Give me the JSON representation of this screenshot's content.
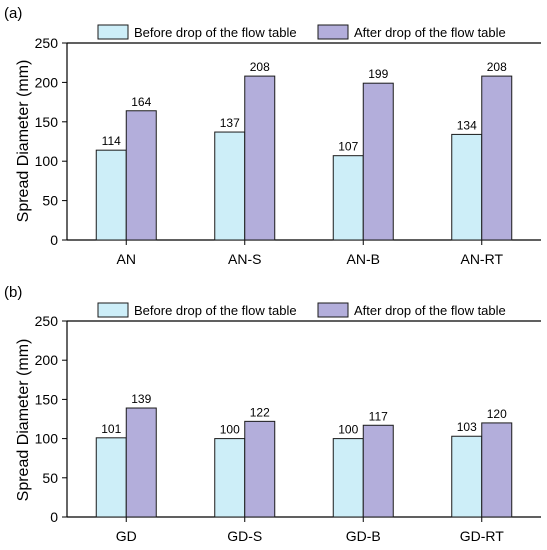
{
  "chart_data": [
    {
      "panel_label": "(a)",
      "type": "bar",
      "categories": [
        "AN",
        "AN-S",
        "AN-B",
        "AN-RT"
      ],
      "series": [
        {
          "name": "Before drop of the flow table",
          "values": [
            114,
            137,
            107,
            134
          ],
          "color": "#cdeef8"
        },
        {
          "name": "After drop of the flow table",
          "values": [
            164,
            208,
            199,
            208
          ],
          "color": "#b3aedb"
        }
      ],
      "ylabel": "Spread Diameter (mm)",
      "xlabel": "",
      "ylim": [
        0,
        250
      ],
      "yticks": [
        0,
        50,
        100,
        150,
        200,
        250
      ],
      "legend": "top",
      "grid": false
    },
    {
      "panel_label": "(b)",
      "type": "bar",
      "categories": [
        "GD",
        "GD-S",
        "GD-B",
        "GD-RT"
      ],
      "series": [
        {
          "name": "Before drop of the flow table",
          "values": [
            101,
            100,
            100,
            103
          ],
          "color": "#cdeef8"
        },
        {
          "name": "After drop of the flow table",
          "values": [
            139,
            122,
            117,
            120
          ],
          "color": "#b3aedb"
        }
      ],
      "ylabel": "Spread Diameter (mm)",
      "xlabel": "",
      "ylim": [
        0,
        250
      ],
      "yticks": [
        0,
        50,
        100,
        150,
        200,
        250
      ],
      "legend": "top",
      "grid": false
    }
  ]
}
